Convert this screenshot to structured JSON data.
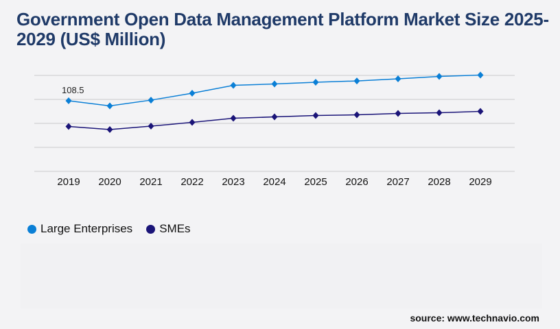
{
  "title": "Government Open Data Management Platform Market Size 2025-2029 (US$ Million)",
  "source": "source: www.technavio.com",
  "chart_data": {
    "type": "line",
    "title": "Government Open Data Management Platform Market Size 2025-2029 (US$ Million)",
    "categories": [
      "2019",
      "2020",
      "2021",
      "2022",
      "2023",
      "2024",
      "2025",
      "2026",
      "2027",
      "2028",
      "2029"
    ],
    "ylim": [
      0,
      147.5
    ],
    "grid": true,
    "legend_position": "bottom-left",
    "series": [
      {
        "name": "Large Enterprises",
        "color": "#0a7fd6",
        "values": [
          108.5,
          100.6,
          109.5,
          120.1,
          132.2,
          134.3,
          136.9,
          139.0,
          142.2,
          145.9,
          148.0
        ]
      },
      {
        "name": "SMEs",
        "color": "#1a1478",
        "values": [
          69.0,
          64.3,
          69.5,
          75.3,
          81.6,
          83.7,
          85.9,
          86.9,
          89.0,
          90.1,
          92.2
        ]
      }
    ],
    "annotations": [
      {
        "series": 0,
        "index": 0,
        "text": "108.5"
      }
    ]
  }
}
